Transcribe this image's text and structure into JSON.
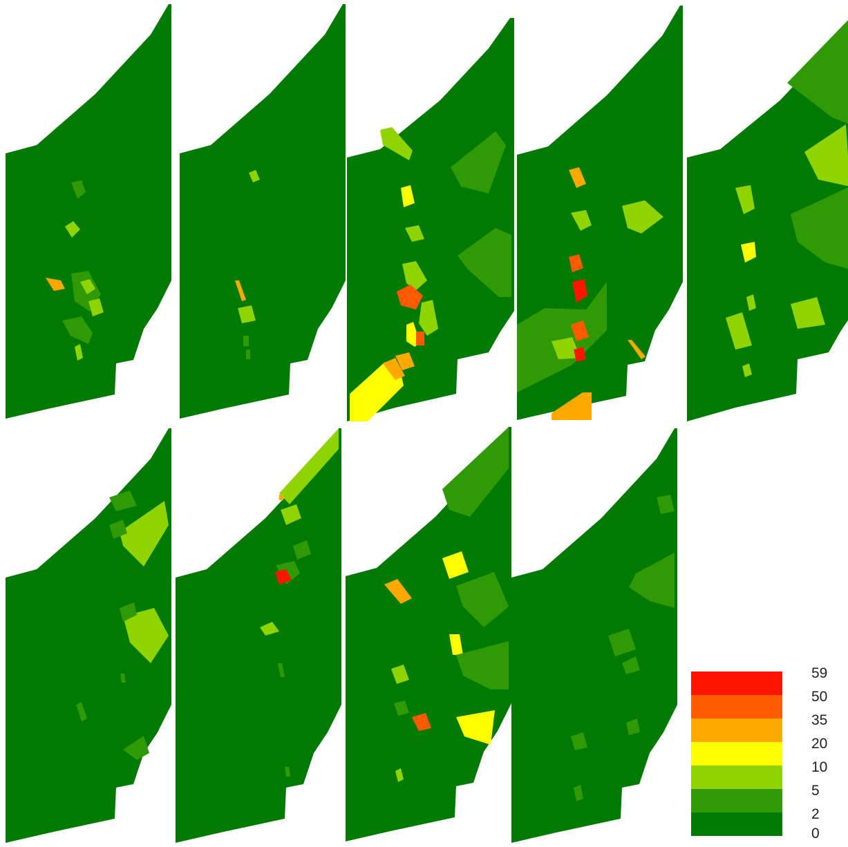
{
  "colors": {
    "c0": "#007a00",
    "c2": "#2f9a06",
    "c5": "#8fd400",
    "c10": "#ffff00",
    "c20": "#ffa800",
    "c35": "#ff5a00",
    "c50": "#ff1400"
  },
  "legend": {
    "classes": [
      {
        "label": "59",
        "color": "#ff1400"
      },
      {
        "label": "50",
        "color": "#ff5a00"
      },
      {
        "label": "35",
        "color": "#ffa800"
      },
      {
        "label": "20",
        "color": "#ffff00"
      },
      {
        "label": "10",
        "color": "#8fd400"
      },
      {
        "label": "5",
        "color": "#2f9a06"
      },
      {
        "label": "2",
        "color": "#007a00"
      },
      {
        "label": "0",
        "color": ""
      }
    ]
  },
  "panels": [
    {
      "id": "panel-1"
    },
    {
      "id": "panel-2"
    },
    {
      "id": "panel-3"
    },
    {
      "id": "panel-4"
    },
    {
      "id": "panel-5"
    },
    {
      "id": "panel-6"
    },
    {
      "id": "panel-7"
    },
    {
      "id": "panel-8"
    },
    {
      "id": "panel-9"
    }
  ]
}
